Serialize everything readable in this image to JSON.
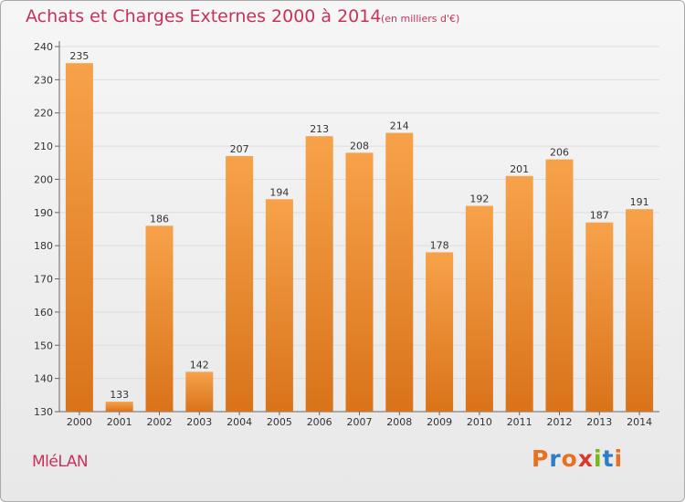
{
  "header": {
    "title": "Achats et Charges Externes 2000 à 2014",
    "subtitle": "(en milliers d'€)"
  },
  "footer": {
    "location": "MléLAN",
    "brand": "Proxiti",
    "brand_colors": [
      "#e8701f",
      "#2f7dc7",
      "#e8701f",
      "#d63a2f",
      "#7ab51d",
      "#2f7dc7",
      "#e8701f"
    ]
  },
  "colors": {
    "bar_top": "#f7a24a",
    "bar_bottom": "#d9731a",
    "grid": "#dddddd",
    "text_accent": "#c8325a"
  },
  "chart_data": {
    "type": "bar",
    "title": "Achats et Charges Externes 2000 à 2014",
    "subtitle": "(en milliers d'€)",
    "categories": [
      "2000",
      "2001",
      "2002",
      "2003",
      "2004",
      "2005",
      "2006",
      "2007",
      "2008",
      "2009",
      "2010",
      "2011",
      "2012",
      "2013",
      "2014"
    ],
    "values": [
      235,
      133,
      186,
      142,
      207,
      194,
      213,
      208,
      214,
      178,
      192,
      201,
      206,
      187,
      191
    ],
    "yticks": [
      130,
      140,
      150,
      160,
      170,
      180,
      190,
      200,
      210,
      220,
      230,
      240
    ],
    "ylim": [
      130,
      240
    ],
    "grid": true,
    "data_labels": true
  }
}
